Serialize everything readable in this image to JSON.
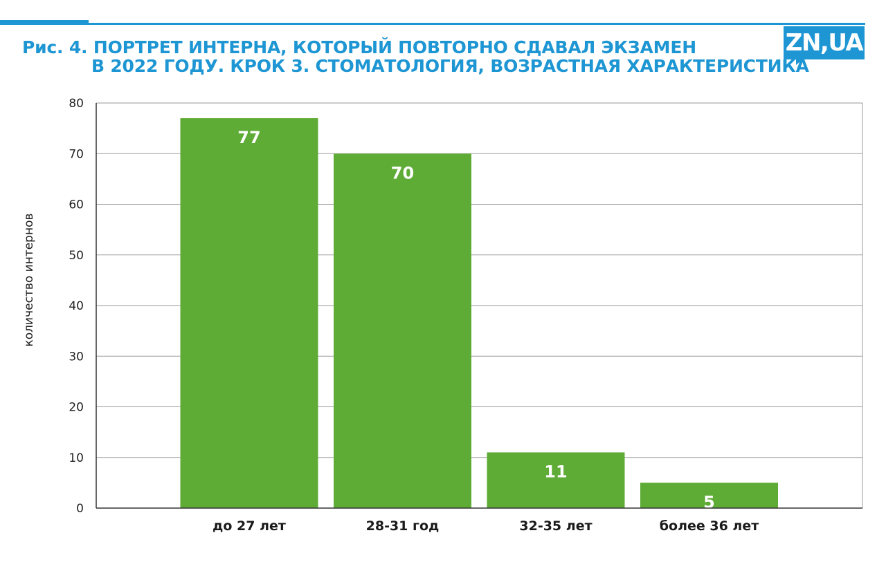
{
  "header": {
    "title_line1": "Рис. 4. ПОРТРЕТ ИНТЕРНА, КОТОРЫЙ ПОВТОРНО СДАВАЛ ЭКЗАМЕН",
    "title_line2": "В 2022 ГОДУ. КРОК 3. СТОМАТОЛОГИЯ, ВОЗРАСТНАЯ ХАРАКТЕРИСТИКА",
    "logo_text": "ZN,UA"
  },
  "colors": {
    "accent": "#1d96d3",
    "bar": "#5eab35",
    "grid": "#9a9a9a",
    "axis": "#333333"
  },
  "chart_data": {
    "type": "bar",
    "title": "Рис. 4. ПОРТРЕТ ИНТЕРНА, КОТОРЫЙ ПОВТОРНО СДАВАЛ ЭКЗАМЕН В 2022 ГОДУ. КРОК 3. СТОМАТОЛОГИЯ, ВОЗРАСТНАЯ ХАРАКТЕРИСТИКА",
    "categories": [
      "до 27 лет",
      "28-31 год",
      "32-35 лет",
      "более 36 лет"
    ],
    "values": [
      77,
      70,
      11,
      5
    ],
    "data_labels": [
      "77",
      "70",
      "11",
      "5"
    ],
    "xlabel": "",
    "ylabel": "количество интернов",
    "ylim": [
      0,
      80
    ],
    "yticks": [
      0,
      10,
      20,
      30,
      40,
      50,
      60,
      70,
      80
    ],
    "grid": true,
    "legend": "none"
  }
}
